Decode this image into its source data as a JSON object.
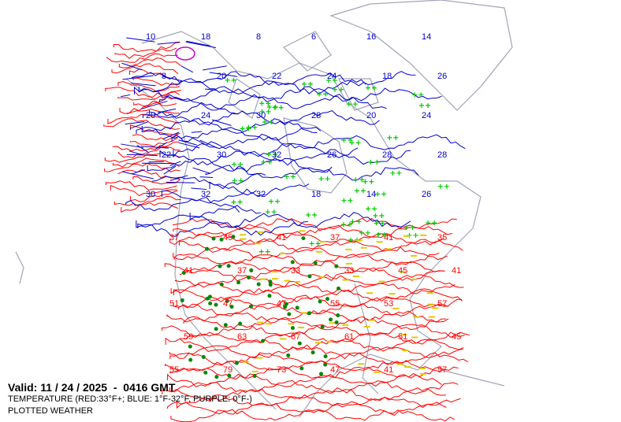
{
  "valid_text": "Valid: 11 / 24 / 2025  -  0416 GMT",
  "legend_line1": "TEMPERATURE (RED:33°F+; BLUE: 1°F-32°F, PURPLE: 0°F-)",
  "legend_line2": "PLOTTED WEATHER",
  "colors": {
    "warm": "#ff0000",
    "cold": "#0000cc",
    "frigid": "#cc00cc",
    "coast": "#a0a4b8",
    "snow": "#00cc00",
    "rain": "#ddcc00",
    "station": "#008800"
  },
  "contour_labels": {
    "cold": [
      "10",
      "18",
      "8",
      "6",
      "16",
      "14",
      "8",
      "20",
      "22",
      "24",
      "18",
      "26",
      "20",
      "24",
      "30",
      "28",
      "20",
      "24",
      "22",
      "30",
      "32",
      "26",
      "28",
      "28",
      "30",
      "32",
      "32",
      "18",
      "14",
      "26"
    ],
    "warm": [
      "37",
      "45",
      "41",
      "37",
      "41",
      "35",
      "41",
      "37",
      "33",
      "33",
      "45",
      "41",
      "51",
      "47",
      "47",
      "55",
      "53",
      "57",
      "59",
      "63",
      "67",
      "61",
      "51",
      "45",
      "55",
      "79",
      "73",
      "47",
      "41",
      "57"
    ]
  }
}
